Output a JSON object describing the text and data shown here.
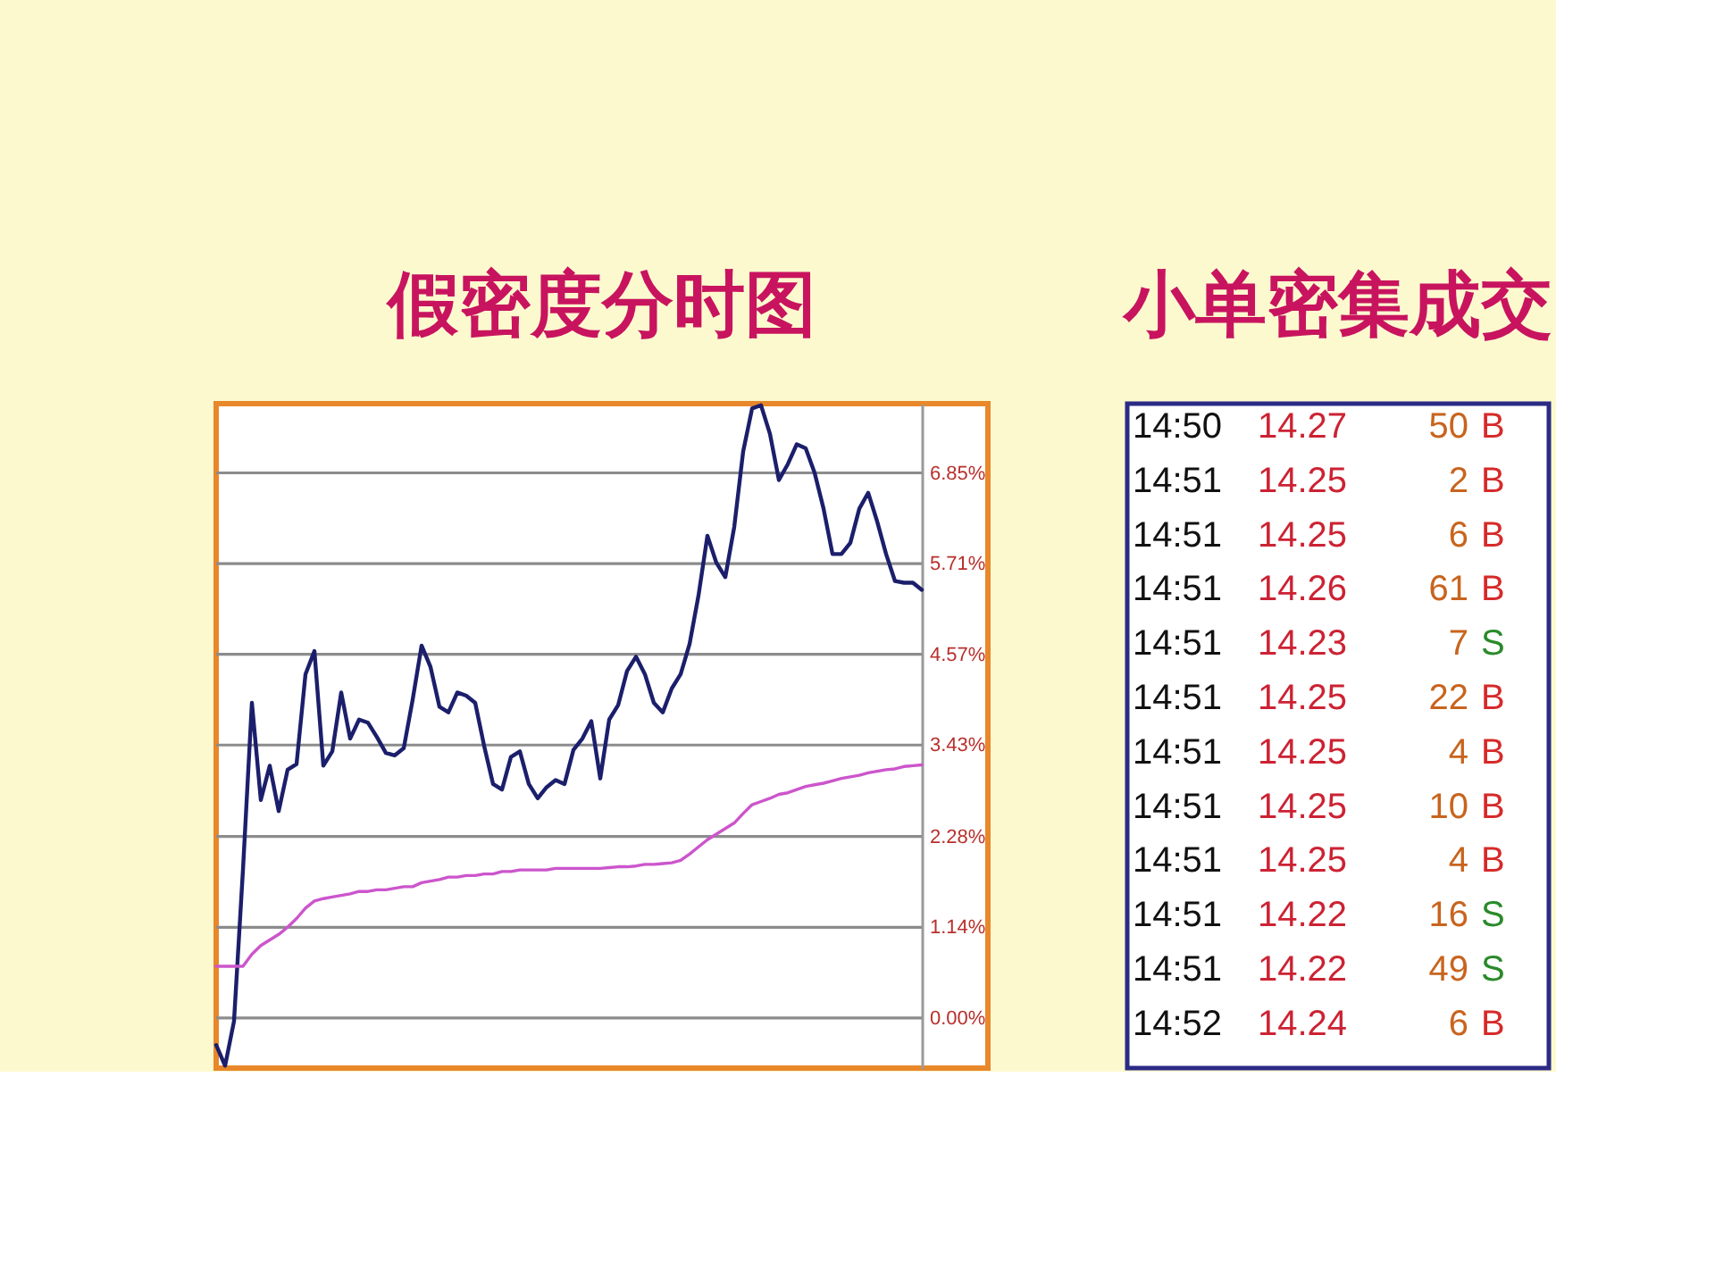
{
  "chart_data": [
    {
      "type": "line",
      "title": "假密度分时图",
      "categories": [
        null,
        null,
        null,
        null,
        null,
        null,
        null,
        null,
        null,
        null,
        null,
        null,
        null,
        null,
        null,
        null,
        null,
        null,
        null,
        null,
        null,
        null,
        null,
        null,
        null,
        null,
        null,
        null,
        null,
        null,
        null,
        null,
        null,
        null,
        null,
        null,
        null,
        null,
        null,
        null,
        null,
        null,
        null,
        null,
        null,
        null,
        null,
        null,
        null,
        null,
        null,
        null,
        null,
        null,
        null,
        null,
        null,
        null,
        null,
        null,
        null,
        null,
        null,
        null,
        null,
        null,
        null,
        null,
        null,
        null,
        null,
        null,
        null,
        null,
        null,
        null,
        null,
        null,
        null,
        null
      ],
      "series": [
        {
          "color": "#1b1f6b",
          "values": [
            -0.34,
            -0.6,
            -0.04,
            1.86,
            3.96,
            2.74,
            3.17,
            2.6,
            3.12,
            3.19,
            4.32,
            4.61,
            3.17,
            3.35,
            4.09,
            3.51,
            3.75,
            3.71,
            3.53,
            3.33,
            3.3,
            3.39,
            4.0,
            4.68,
            4.41,
            3.91,
            3.84,
            4.09,
            4.05,
            3.96,
            3.42,
            2.94,
            2.87,
            3.28,
            3.35,
            2.94,
            2.76,
            2.9,
            2.99,
            2.94,
            3.37,
            3.51,
            3.73,
            3.01,
            3.75,
            3.93,
            4.36,
            4.54,
            4.32,
            3.96,
            3.84,
            4.14,
            4.32,
            4.7,
            5.31,
            6.06,
            5.72,
            5.54,
            6.17,
            7.12,
            7.66,
            7.7,
            7.34,
            6.76,
            6.96,
            7.21,
            7.16,
            6.85,
            6.4,
            5.83,
            5.83,
            5.97,
            6.4,
            6.6,
            6.24,
            5.83,
            5.49,
            5.47,
            5.47,
            5.38
          ]
        },
        {
          "color": "#cc55cc",
          "values": [
            0.65,
            0.65,
            0.65,
            0.65,
            0.8,
            0.91,
            0.98,
            1.05,
            1.14,
            1.25,
            1.38,
            1.47,
            1.5,
            1.52,
            1.54,
            1.56,
            1.59,
            1.59,
            1.61,
            1.61,
            1.63,
            1.65,
            1.65,
            1.7,
            1.72,
            1.74,
            1.77,
            1.77,
            1.79,
            1.79,
            1.81,
            1.81,
            1.84,
            1.84,
            1.86,
            1.86,
            1.86,
            1.86,
            1.88,
            1.88,
            1.88,
            1.88,
            1.88,
            1.88,
            1.89,
            1.9,
            1.9,
            1.91,
            1.93,
            1.93,
            1.94,
            1.95,
            1.98,
            2.06,
            2.15,
            2.24,
            2.31,
            2.38,
            2.45,
            2.57,
            2.68,
            2.72,
            2.76,
            2.81,
            2.83,
            2.87,
            2.91,
            2.93,
            2.95,
            2.98,
            3.01,
            3.03,
            3.05,
            3.08,
            3.1,
            3.12,
            3.13,
            3.16,
            3.17,
            3.18
          ]
        }
      ],
      "ylim": [
        -0.63,
        7.72
      ],
      "yticks": [
        {
          "value": 0,
          "label": "0.00%"
        },
        {
          "value": 1.14,
          "label": "1.14%"
        },
        {
          "value": 2.28,
          "label": "2.28%"
        },
        {
          "value": 3.43,
          "label": "3.43%"
        },
        {
          "value": 4.57,
          "label": "4.57%"
        },
        {
          "value": 5.71,
          "label": "5.71%"
        },
        {
          "value": 6.85,
          "label": "6.85%"
        }
      ],
      "grid": "y",
      "tick_labels": "y"
    },
    {
      "type": "other",
      "title": "小单密集成交",
      "annotations": [
        "14:50 14.27 50 B",
        "14:51 14.25 2 B",
        "14:51 14.25 6 B",
        "14:51 14.26 61 B",
        "14:51 14.23 7 S",
        "14:51 14.25 22 B",
        "14:51 14.25 4 B",
        "14:51 14.25 10 B",
        "14:51 14.25 4 B",
        "14:51 14.22 16 S",
        "14:51 14.22 49 S",
        "14:52 14.24 6 B"
      ],
      "colors": [
        "#d62a2a",
        "#d62a2a",
        "#d62a2a",
        "#d62a2a",
        "#2a8a2a",
        "#d62a2a",
        "#d62a2a",
        "#d62a2a",
        "#d62a2a",
        "#2a8a2a",
        "#2a8a2a",
        "#d62a2a"
      ]
    }
  ]
}
